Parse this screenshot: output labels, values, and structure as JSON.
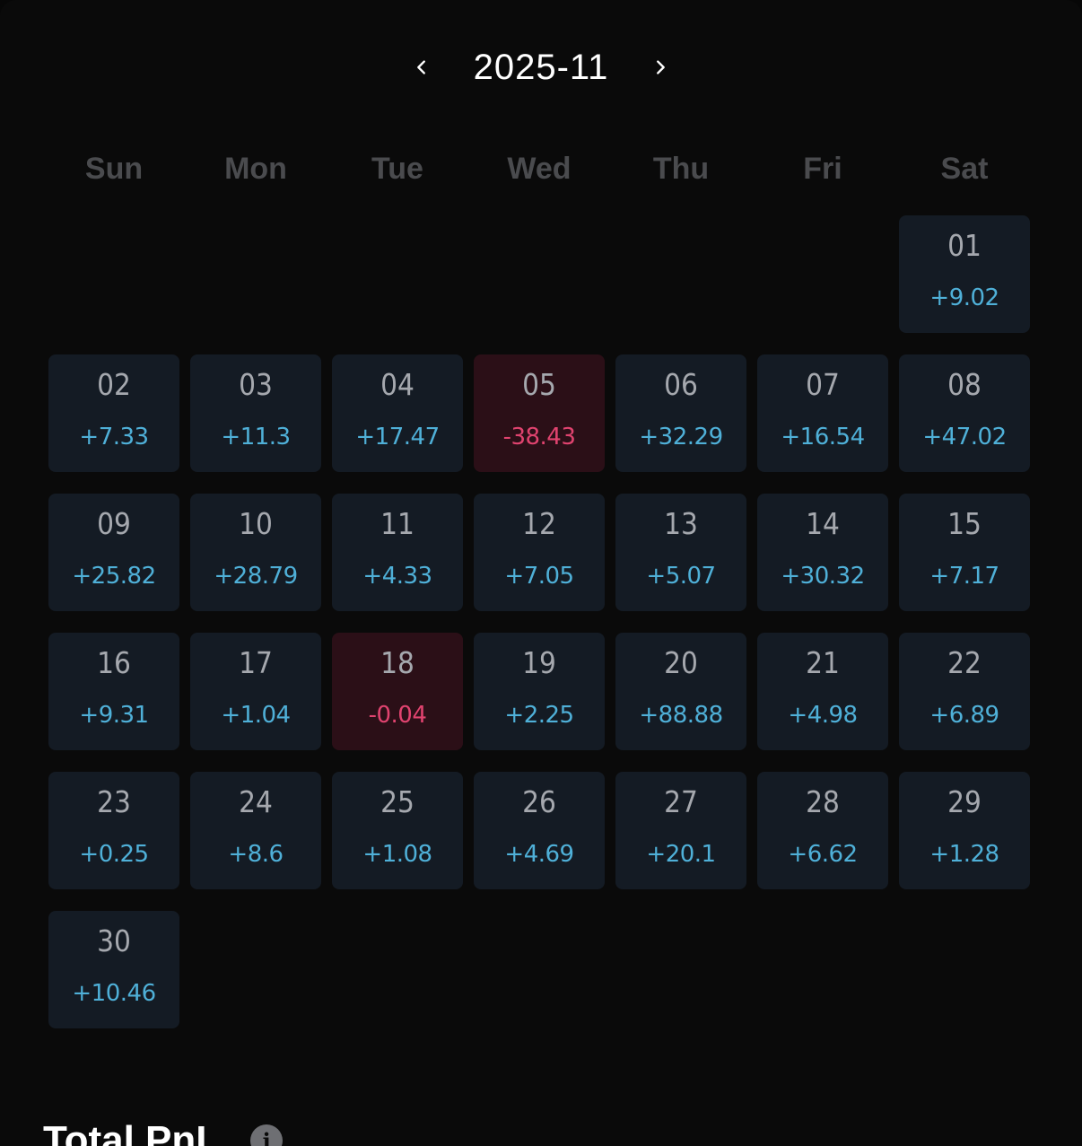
{
  "header": {
    "month": "2025-11",
    "prev_icon": "chevron-left-icon",
    "next_icon": "chevron-right-icon"
  },
  "weekdays": [
    "Sun",
    "Mon",
    "Tue",
    "Wed",
    "Thu",
    "Fri",
    "Sat"
  ],
  "calendar": {
    "leading_empty_days": 6,
    "days": [
      {
        "day": "01",
        "pnl": "+9.02"
      },
      {
        "day": "02",
        "pnl": "+7.33"
      },
      {
        "day": "03",
        "pnl": "+11.3"
      },
      {
        "day": "04",
        "pnl": "+17.47"
      },
      {
        "day": "05",
        "pnl": "-38.43"
      },
      {
        "day": "06",
        "pnl": "+32.29"
      },
      {
        "day": "07",
        "pnl": "+16.54"
      },
      {
        "day": "08",
        "pnl": "+47.02"
      },
      {
        "day": "09",
        "pnl": "+25.82"
      },
      {
        "day": "10",
        "pnl": "+28.79"
      },
      {
        "day": "11",
        "pnl": "+4.33"
      },
      {
        "day": "12",
        "pnl": "+7.05"
      },
      {
        "day": "13",
        "pnl": "+5.07"
      },
      {
        "day": "14",
        "pnl": "+30.32"
      },
      {
        "day": "15",
        "pnl": "+7.17"
      },
      {
        "day": "16",
        "pnl": "+9.31"
      },
      {
        "day": "17",
        "pnl": "+1.04"
      },
      {
        "day": "18",
        "pnl": "-0.04"
      },
      {
        "day": "19",
        "pnl": "+2.25"
      },
      {
        "day": "20",
        "pnl": "+88.88"
      },
      {
        "day": "21",
        "pnl": "+4.98"
      },
      {
        "day": "22",
        "pnl": "+6.89"
      },
      {
        "day": "23",
        "pnl": "+0.25"
      },
      {
        "day": "24",
        "pnl": "+8.6"
      },
      {
        "day": "25",
        "pnl": "+1.08"
      },
      {
        "day": "26",
        "pnl": "+4.69"
      },
      {
        "day": "27",
        "pnl": "+20.1"
      },
      {
        "day": "28",
        "pnl": "+6.62"
      },
      {
        "day": "29",
        "pnl": "+1.28"
      },
      {
        "day": "30",
        "pnl": "+10.46"
      }
    ]
  },
  "colors": {
    "profit": "#4fb0d8",
    "loss": "#e0436f",
    "cell_bg": "#141b24",
    "loss_cell_bg": "#2b0f17"
  },
  "summary": {
    "title": "Total PnL",
    "info_icon": "info-icon"
  }
}
